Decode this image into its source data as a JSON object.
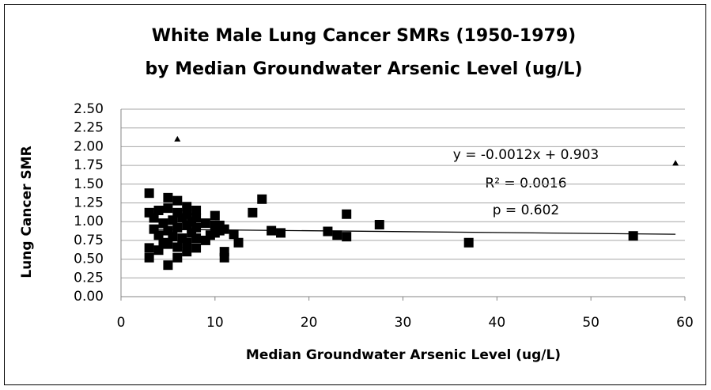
{
  "chart_data": {
    "type": "scatter",
    "title": [
      "White Male Lung Cancer SMRs (1950-1979)",
      "by Median Groundwater Arsenic Level (ug/L)"
    ],
    "x_label": "Median Groundwater Arsenic Level (ug/L)",
    "y_label": "Lung Cancer SMR",
    "xlim": [
      0,
      60
    ],
    "xticks": [
      0,
      10,
      20,
      30,
      40,
      50,
      60
    ],
    "ylim": [
      0,
      2.5
    ],
    "yticks": [
      {
        "value": 0,
        "label": "0.00"
      },
      {
        "value": 0.25,
        "label": "0.25"
      },
      {
        "value": 0.5,
        "label": "0.50"
      },
      {
        "value": 0.75,
        "label": "0.75"
      },
      {
        "value": 1,
        "label": "1.00"
      },
      {
        "value": 1.25,
        "label": "1.25"
      },
      {
        "value": 1.5,
        "label": "1.50"
      },
      {
        "value": 1.75,
        "label": "1.75"
      },
      {
        "value": 2,
        "label": "2.00"
      },
      {
        "value": 2.25,
        "label": "2.25"
      },
      {
        "value": 2.5,
        "label": "2.50"
      }
    ],
    "grid": true,
    "series": [
      {
        "marker": "square",
        "color": "#000000",
        "x": [
          3,
          3,
          5,
          5,
          6,
          6,
          7,
          7,
          8,
          8,
          9,
          10,
          10,
          10.5,
          11,
          11,
          12,
          12.5,
          14,
          15,
          16,
          17,
          22,
          23,
          24,
          24,
          27.5,
          37,
          54.5,
          3,
          3,
          3.5,
          3.5,
          4,
          4,
          4,
          4.5,
          4.5,
          5,
          5,
          5,
          5.5,
          5.5,
          6,
          6,
          6,
          6.5,
          6.5,
          7,
          7,
          7,
          7.5,
          7.5,
          8,
          8,
          8,
          9,
          9.5,
          10,
          10.5,
          11
        ],
        "values": [
          1.38,
          0.52,
          0.42,
          1.32,
          1.28,
          0.52,
          1.2,
          0.6,
          1.15,
          0.65,
          0.75,
          1.08,
          0.85,
          0.95,
          0.6,
          0.52,
          0.83,
          0.72,
          1.12,
          1.3,
          0.88,
          0.85,
          0.87,
          0.82,
          1.1,
          0.8,
          0.96,
          0.72,
          0.81,
          1.12,
          0.65,
          0.9,
          1.05,
          1.15,
          0.62,
          0.82,
          0.98,
          0.72,
          1.18,
          0.88,
          0.7,
          1.02,
          0.8,
          1.12,
          0.92,
          0.66,
          1.05,
          0.78,
          1.1,
          0.95,
          0.72,
          1.0,
          0.85,
          1.05,
          0.78,
          0.92,
          0.98,
          0.82,
          0.95,
          0.88,
          0.9
        ]
      },
      {
        "marker": "triangle",
        "color": "#000000",
        "x": [
          6,
          59
        ],
        "values": [
          2.1,
          1.78
        ]
      }
    ],
    "trendline": {
      "slope": -0.0012,
      "intercept": 0.903,
      "xrange": [
        3,
        59
      ],
      "color": "#000000"
    },
    "annotations": [
      "y = -0.0012x + 0.903",
      "R² = 0.0016",
      "p = 0.602"
    ]
  }
}
